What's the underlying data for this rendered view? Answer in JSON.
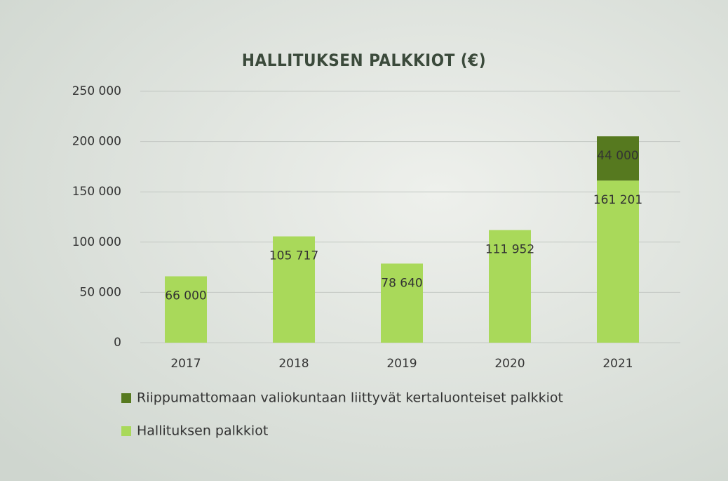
{
  "chart_data": {
    "type": "stacked_bar",
    "title": "HALLITUKSEN PALKKIOT (€)",
    "categories": [
      "2017",
      "2018",
      "2019",
      "2020",
      "2021"
    ],
    "series": [
      {
        "name": "Hallituksen palkkiot",
        "color": "#a9d95a",
        "values": [
          66000,
          105717,
          78640,
          111952,
          161201
        ],
        "value_labels": [
          "66 000",
          "105 717",
          "78 640",
          "111 952",
          "161 201"
        ]
      },
      {
        "name": "Riippumattomaan valiokuntaan liittyvät kertaluonteiset palkkiot",
        "color": "#56791f",
        "values": [
          null,
          null,
          null,
          null,
          44000
        ],
        "value_labels": [
          null,
          null,
          null,
          null,
          "44 000"
        ]
      }
    ],
    "ylim": [
      0,
      250000
    ],
    "yticks": [
      0,
      {
        "value": 50000,
        "label": "50 000"
      },
      {
        "value": 100000,
        "label": "100 000"
      },
      {
        "value": 150000,
        "label": "150 000"
      },
      {
        "value": 200000,
        "label": "200 000"
      },
      {
        "value": 250000,
        "label": "250 000"
      }
    ],
    "grid": true
  }
}
